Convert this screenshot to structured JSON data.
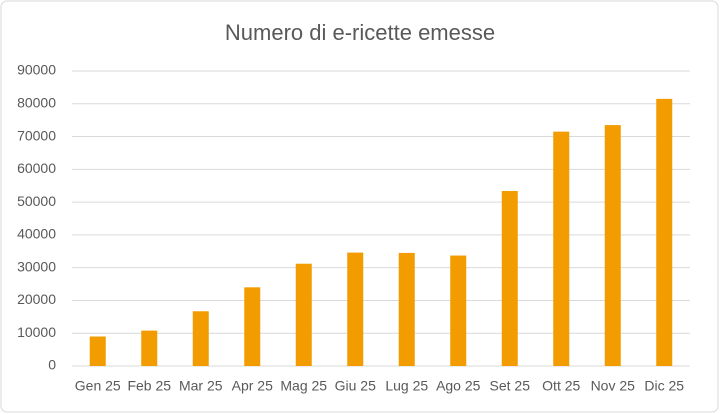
{
  "chart_data": {
    "type": "bar",
    "title": "Numero di e-ricette emesse",
    "categories": [
      "Gen 25",
      "Feb 25",
      "Mar 25",
      "Apr 25",
      "Mag 25",
      "Giu 25",
      "Lug 25",
      "Ago 25",
      "Set 25",
      "Ott 25",
      "Nov 25",
      "Dic 25"
    ],
    "values": [
      9000,
      10800,
      16700,
      24000,
      31200,
      34600,
      34500,
      33700,
      53400,
      71500,
      73500,
      81500
    ],
    "color": "#f29c00",
    "ylim": [
      0,
      90000
    ],
    "yticks": [
      0,
      10000,
      20000,
      30000,
      40000,
      50000,
      60000,
      70000,
      80000,
      90000
    ],
    "grid": true
  }
}
